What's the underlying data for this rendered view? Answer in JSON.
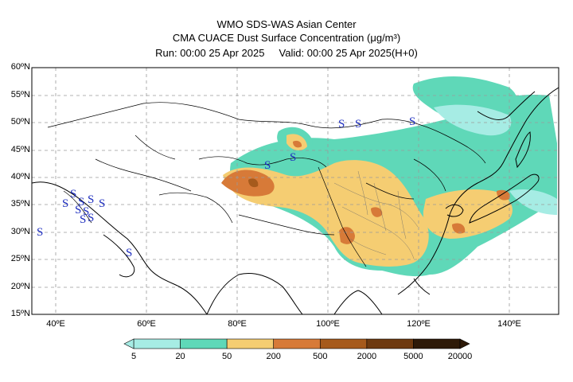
{
  "header": {
    "line1": "WMO SDS-WAS Asian Center",
    "line2": "CMA CUACE Dust Surface Concentration (μg/m³)",
    "run_label": "Run: 00:00 25 Apr 2025",
    "valid_label": "Valid: 00:00 25 Apr 2025(H+0)"
  },
  "map": {
    "lat_ticks": [
      "60ºN",
      "55ºN",
      "50ºN",
      "45ºN",
      "40ºN",
      "35ºN",
      "30ºN",
      "25ºN",
      "20ºN",
      "15ºN"
    ],
    "lon_ticks": [
      "40ºE",
      "60ºE",
      "80ºE",
      "100ºE",
      "120ºE",
      "140ºE"
    ],
    "lat_range": [
      15,
      60
    ],
    "lon_range": [
      35,
      150
    ],
    "grid": true,
    "dust_storm_symbol": "S",
    "symbol_color": "#1f2fbf"
  },
  "legend": {
    "thresholds": [
      "5",
      "20",
      "50",
      "200",
      "500",
      "2000",
      "5000",
      "20000"
    ],
    "colors": [
      "#a6ece4",
      "#5fd8b8",
      "#f5cd72",
      "#d77a38",
      "#a65a1c",
      "#6e3a10",
      "#2e1a08"
    ],
    "units": "μg/m³"
  }
}
